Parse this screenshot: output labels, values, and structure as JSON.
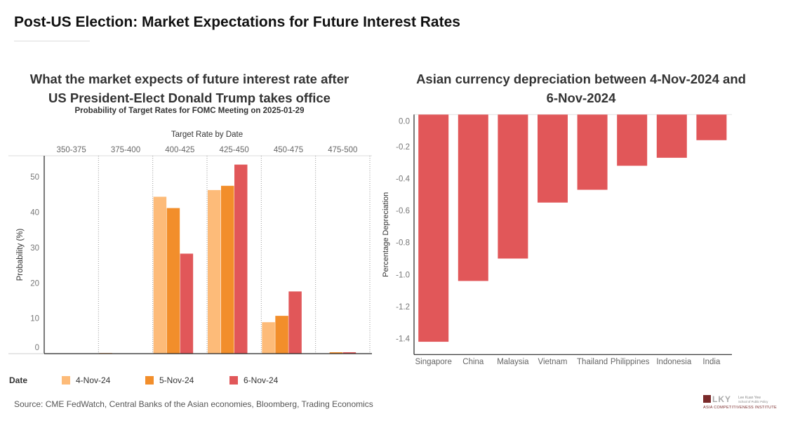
{
  "title": "Post-US Election: Market Expectations for Future Interest Rates",
  "source": "Source: CME FedWatch, Central Banks of the Asian economies, Bloomberg, Trading Economics",
  "logo": {
    "text_line1": "Lee Kuan Yew",
    "text_line2": "School of Public Policy",
    "text_line3": "Asia Competitiveness Institute",
    "mark": "LKY"
  },
  "chart_data": [
    {
      "type": "bar",
      "title_line1": "What the market expects of future interest rate after",
      "title_line2": "US President-Elect Donald Trump takes office",
      "subtitle": "Probability of Target Rates for FOMC Meeting on 2025-01-29",
      "xlabel": "Target Rate by Date",
      "ylabel": "Probability (%)",
      "categories": [
        "350-375",
        "375-400",
        "400-425",
        "425-450",
        "450-475",
        "475-500"
      ],
      "yticks": [
        "0",
        "10",
        "20",
        "30",
        "40",
        "50"
      ],
      "ylim": [
        0,
        56
      ],
      "grid": false,
      "legend_title": "Date",
      "legend_position": "bottom",
      "series": [
        {
          "name": "4-Nov-24",
          "color": "#FDBB79",
          "values": [
            0,
            0.2,
            44.4,
            46.3,
            8.9,
            0
          ]
        },
        {
          "name": "5-Nov-24",
          "color": "#F28E2B",
          "values": [
            0,
            0,
            41.2,
            47.5,
            10.7,
            0.4
          ]
        },
        {
          "name": "6-Nov-24",
          "color": "#E15759",
          "values": [
            0,
            0,
            28.3,
            53.5,
            17.6,
            0.4
          ]
        }
      ]
    },
    {
      "type": "bar",
      "title_line1": "Asian currency depreciation between 4-Nov-2024 and",
      "title_line2": "6-Nov-2024",
      "ylabel": "Percentage Depreciation",
      "categories": [
        "Singapore",
        "China",
        "Malaysia",
        "Vietnam",
        "Thailand",
        "Philippines",
        "Indonesia",
        "India"
      ],
      "values": [
        -1.42,
        -1.04,
        -0.9,
        -0.55,
        -0.47,
        -0.32,
        -0.27,
        -0.16
      ],
      "yticks": [
        "0.0",
        "-0.2",
        "-0.4",
        "-0.6",
        "-0.8",
        "-1.0",
        "-1.2",
        "-1.4"
      ],
      "ylim": [
        -1.5,
        0
      ],
      "color": "#E15759",
      "grid": false
    }
  ]
}
